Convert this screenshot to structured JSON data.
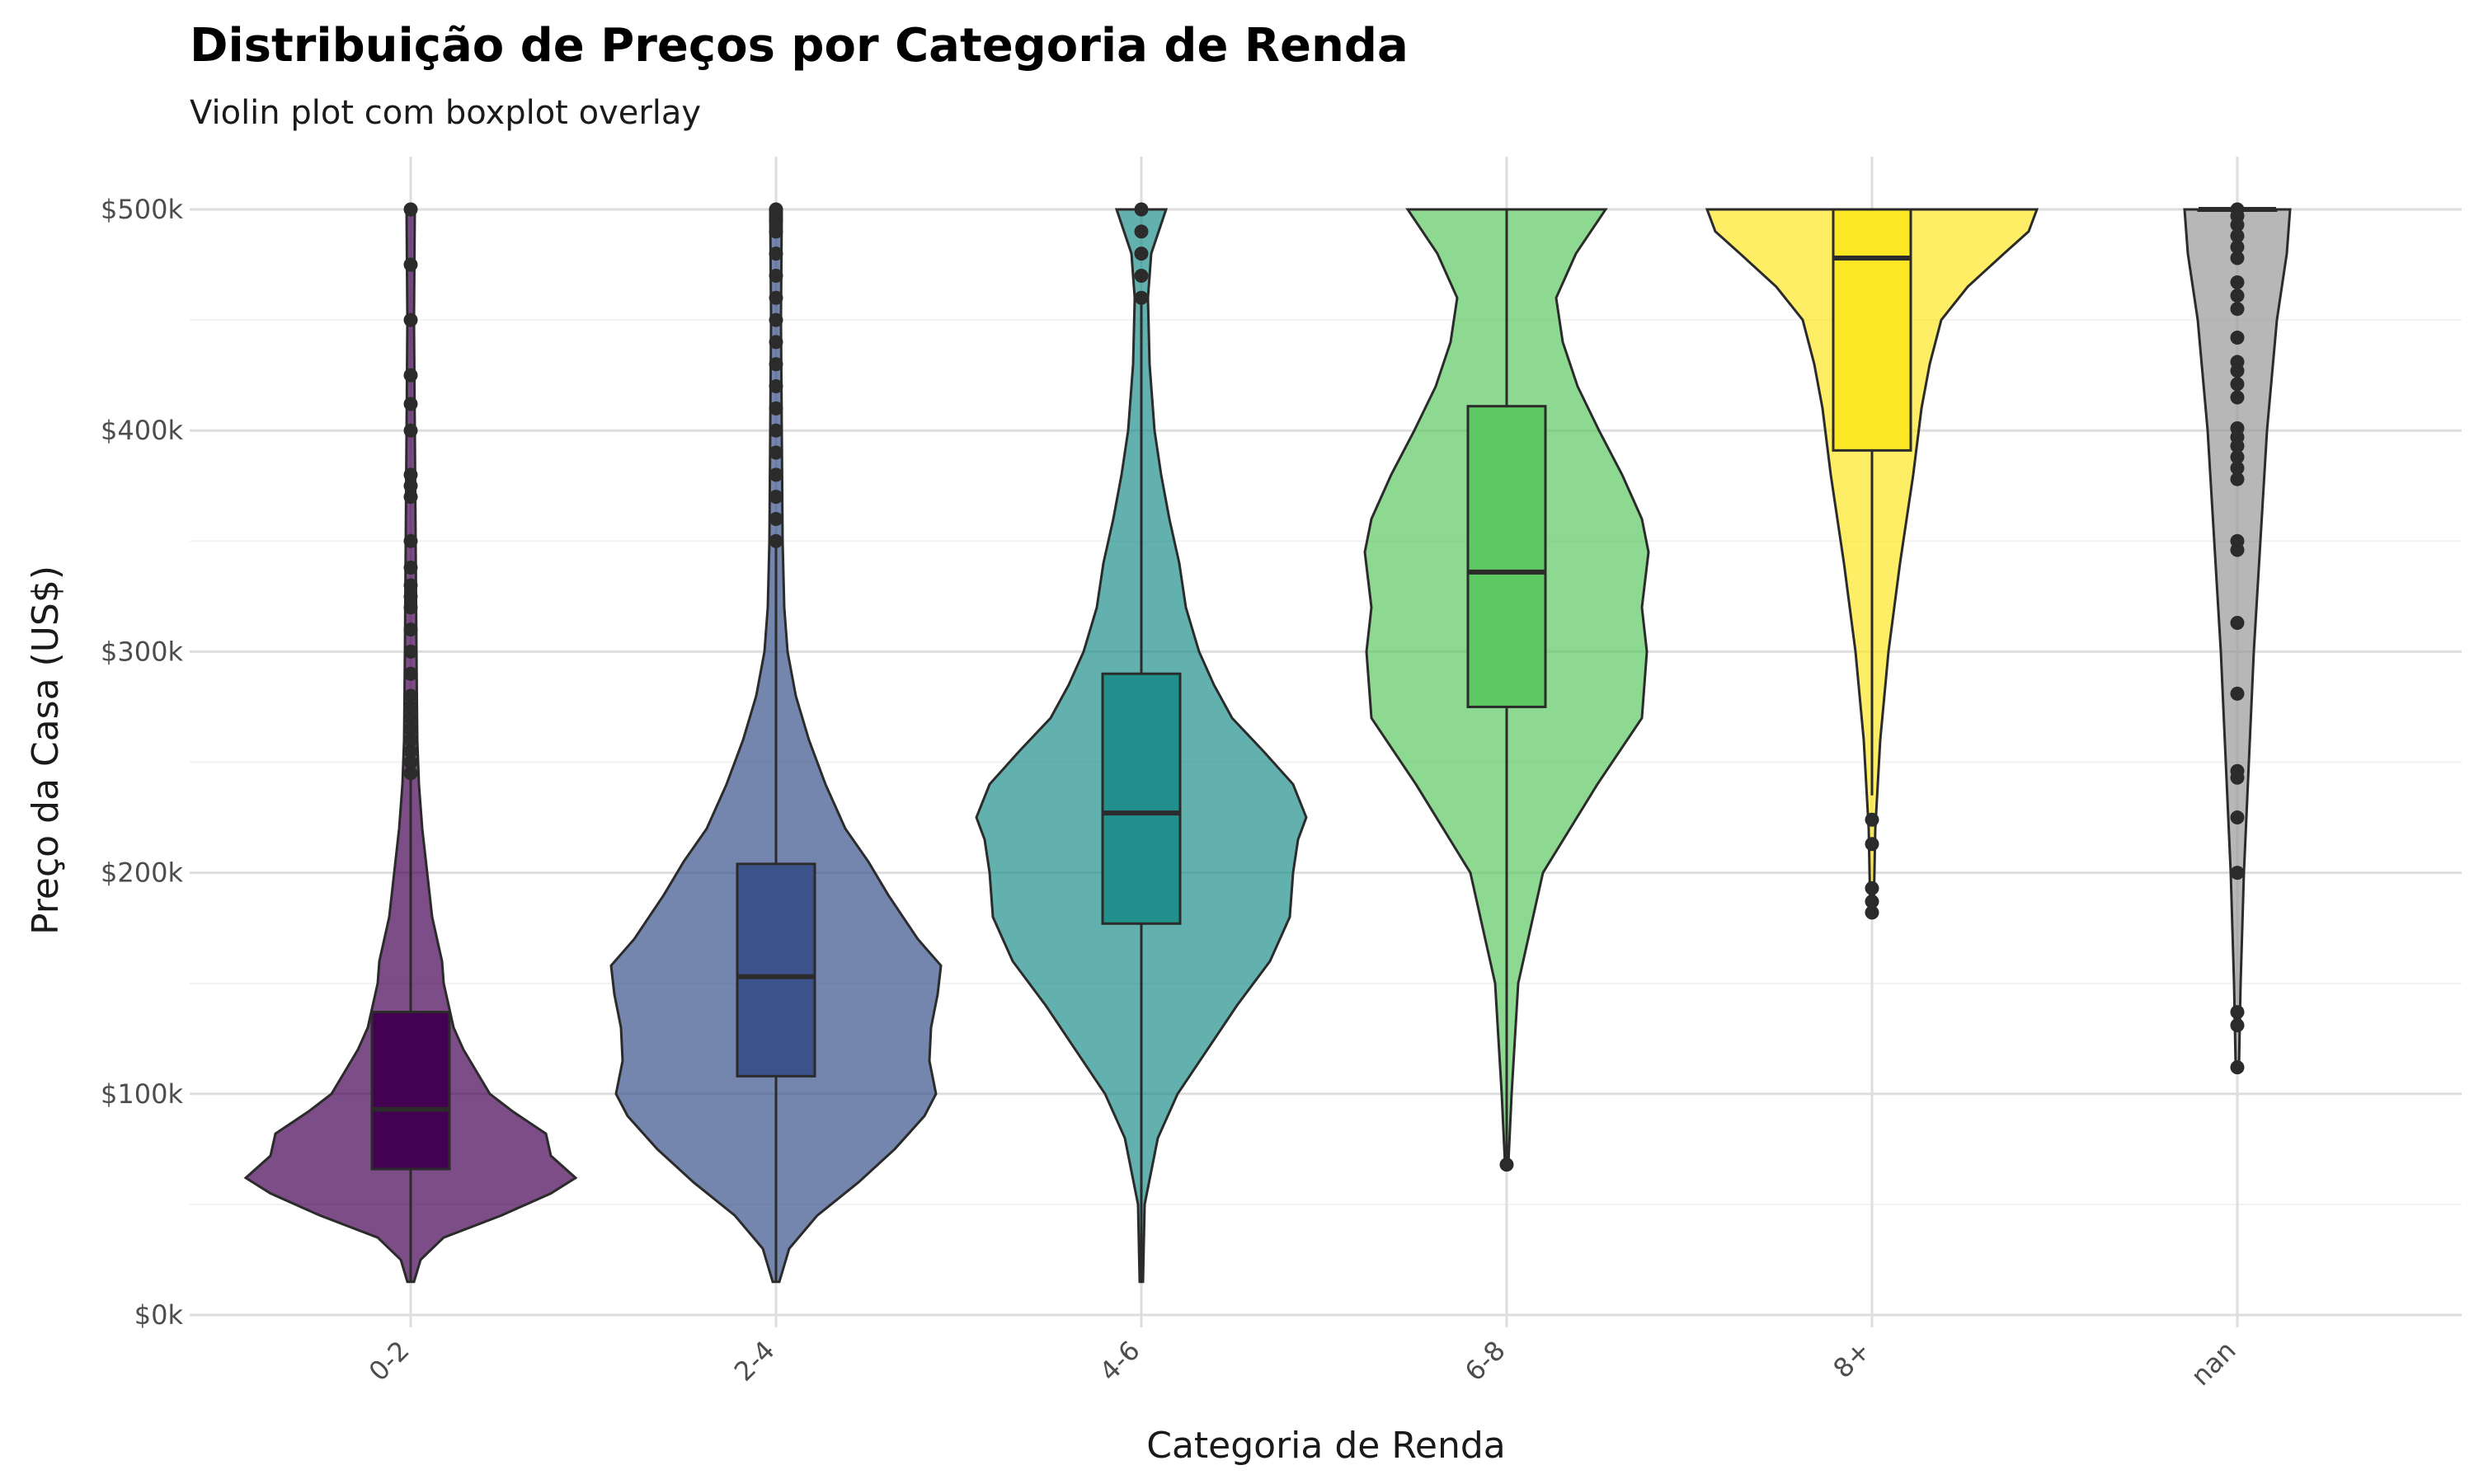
{
  "chart_data": {
    "type": "violin",
    "title": "Distribuição de Preços por Categoria de Renda",
    "subtitle": "Violin plot com boxplot overlay",
    "xlabel": "Categoria de Renda",
    "ylabel": "Preço da Casa (US$)",
    "ylim": [
      0,
      500000
    ],
    "yticks": [
      0,
      100000,
      200000,
      300000,
      400000,
      500000
    ],
    "ytick_labels": [
      "$0k",
      "$100k",
      "$200k",
      "$300k",
      "$400k",
      "$500k"
    ],
    "grid": true,
    "legend": "none",
    "categories": [
      "0-2",
      "2-4",
      "4-6",
      "6-8",
      "8+",
      "nan"
    ],
    "series": [
      {
        "category": "0-2",
        "color": "#440154",
        "box": {
          "q1": 66000,
          "median": 93000,
          "q3": 137000,
          "whisker_low": 15000,
          "whisker_high": 243000
        },
        "density": [
          [
            15000,
            0.02
          ],
          [
            25000,
            0.06
          ],
          [
            35000,
            0.2
          ],
          [
            45000,
            0.55
          ],
          [
            55000,
            0.85
          ],
          [
            62000,
            1.0
          ],
          [
            72000,
            0.85
          ],
          [
            82000,
            0.82
          ],
          [
            92000,
            0.62
          ],
          [
            100000,
            0.48
          ],
          [
            110000,
            0.4
          ],
          [
            120000,
            0.32
          ],
          [
            130000,
            0.26
          ],
          [
            140000,
            0.23
          ],
          [
            150000,
            0.2
          ],
          [
            160000,
            0.19
          ],
          [
            170000,
            0.16
          ],
          [
            180000,
            0.13
          ],
          [
            200000,
            0.1
          ],
          [
            220000,
            0.07
          ],
          [
            240000,
            0.05
          ],
          [
            260000,
            0.04
          ],
          [
            300000,
            0.035
          ],
          [
            350000,
            0.03
          ],
          [
            400000,
            0.025
          ],
          [
            450000,
            0.02
          ],
          [
            500000,
            0.025
          ]
        ],
        "outliers": [
          245000,
          250000,
          255000,
          260000,
          265000,
          270000,
          275000,
          280000,
          290000,
          300000,
          310000,
          320000,
          325000,
          330000,
          338000,
          350000,
          370000,
          375000,
          380000,
          400000,
          412000,
          425000,
          450000,
          475000,
          500000
        ]
      },
      {
        "category": "2-4",
        "color": "#3b528b",
        "box": {
          "q1": 108000,
          "median": 153000,
          "q3": 204000,
          "whisker_low": 15000,
          "whisker_high": 349000
        },
        "density": [
          [
            15000,
            0.02
          ],
          [
            30000,
            0.08
          ],
          [
            45000,
            0.25
          ],
          [
            60000,
            0.5
          ],
          [
            75000,
            0.72
          ],
          [
            90000,
            0.9
          ],
          [
            100000,
            0.97
          ],
          [
            115000,
            0.93
          ],
          [
            130000,
            0.94
          ],
          [
            145000,
            0.98
          ],
          [
            158000,
            1.0
          ],
          [
            170000,
            0.86
          ],
          [
            190000,
            0.68
          ],
          [
            205000,
            0.56
          ],
          [
            220000,
            0.42
          ],
          [
            240000,
            0.3
          ],
          [
            260000,
            0.2
          ],
          [
            280000,
            0.12
          ],
          [
            300000,
            0.07
          ],
          [
            320000,
            0.05
          ],
          [
            350000,
            0.04
          ],
          [
            400000,
            0.035
          ],
          [
            450000,
            0.03
          ],
          [
            500000,
            0.035
          ]
        ],
        "outliers": [
          350000,
          360000,
          370000,
          380000,
          390000,
          400000,
          410000,
          420000,
          430000,
          440000,
          450000,
          460000,
          470000,
          480000,
          490000,
          495000,
          500000
        ]
      },
      {
        "category": "4-6",
        "color": "#21908d",
        "box": {
          "q1": 177000,
          "median": 227000,
          "q3": 290000,
          "whisker_low": 15000,
          "whisker_high": 458000
        },
        "density": [
          [
            15000,
            0.01
          ],
          [
            50000,
            0.02
          ],
          [
            80000,
            0.1
          ],
          [
            100000,
            0.22
          ],
          [
            120000,
            0.4
          ],
          [
            140000,
            0.58
          ],
          [
            160000,
            0.78
          ],
          [
            180000,
            0.9
          ],
          [
            200000,
            0.92
          ],
          [
            215000,
            0.95
          ],
          [
            225000,
            1.0
          ],
          [
            240000,
            0.92
          ],
          [
            255000,
            0.74
          ],
          [
            270000,
            0.55
          ],
          [
            285000,
            0.44
          ],
          [
            300000,
            0.35
          ],
          [
            320000,
            0.27
          ],
          [
            340000,
            0.23
          ],
          [
            360000,
            0.17
          ],
          [
            380000,
            0.12
          ],
          [
            400000,
            0.08
          ],
          [
            430000,
            0.05
          ],
          [
            460000,
            0.04
          ],
          [
            480000,
            0.06
          ],
          [
            500000,
            0.15
          ]
        ],
        "outliers": [
          460000,
          470000,
          480000,
          490000,
          500000
        ]
      },
      {
        "category": "6-8",
        "color": "#5ec962",
        "box": {
          "q1": 275000,
          "median": 336000,
          "q3": 411000,
          "whisker_low": 68000,
          "whisker_high": 500000
        },
        "density": [
          [
            68000,
            0.01
          ],
          [
            100000,
            0.03
          ],
          [
            150000,
            0.07
          ],
          [
            200000,
            0.22
          ],
          [
            240000,
            0.55
          ],
          [
            270000,
            0.82
          ],
          [
            300000,
            0.85
          ],
          [
            320000,
            0.82
          ],
          [
            345000,
            0.86
          ],
          [
            360000,
            0.82
          ],
          [
            380000,
            0.7
          ],
          [
            400000,
            0.56
          ],
          [
            420000,
            0.43
          ],
          [
            440000,
            0.34
          ],
          [
            460000,
            0.3
          ],
          [
            480000,
            0.42
          ],
          [
            500000,
            0.6
          ]
        ],
        "outliers": [
          68000
        ]
      },
      {
        "category": "8+",
        "color": "#fde725",
        "box": {
          "q1": 391000,
          "median": 478000,
          "q3": 500000,
          "whisker_low": 235000,
          "whisker_high": 500000
        },
        "density": [
          [
            182000,
            0.01
          ],
          [
            220000,
            0.02
          ],
          [
            260000,
            0.05
          ],
          [
            300000,
            0.1
          ],
          [
            340000,
            0.17
          ],
          [
            380000,
            0.25
          ],
          [
            410000,
            0.3
          ],
          [
            430000,
            0.35
          ],
          [
            450000,
            0.42
          ],
          [
            465000,
            0.58
          ],
          [
            480000,
            0.8
          ],
          [
            490000,
            0.95
          ],
          [
            500000,
            1.0
          ]
        ],
        "outliers": [
          182000,
          187000,
          193000,
          213000,
          224000
        ]
      },
      {
        "category": "nan",
        "color": "#999999",
        "box": {
          "q1": 500000,
          "median": 500000,
          "q3": 500000,
          "whisker_low": 500000,
          "whisker_high": 500000
        },
        "density": [
          [
            112000,
            0.01
          ],
          [
            150000,
            0.02
          ],
          [
            200000,
            0.04
          ],
          [
            250000,
            0.07
          ],
          [
            300000,
            0.1
          ],
          [
            350000,
            0.14
          ],
          [
            400000,
            0.18
          ],
          [
            450000,
            0.24
          ],
          [
            480000,
            0.3
          ],
          [
            500000,
            0.32
          ]
        ],
        "outliers": [
          112000,
          131000,
          137000,
          200000,
          225000,
          243000,
          246000,
          281000,
          313000,
          346000,
          350000,
          378000,
          383000,
          388000,
          393000,
          397000,
          401000,
          415000,
          421000,
          427000,
          431000,
          442000,
          455000,
          461000,
          467000,
          478000,
          483000,
          488000,
          493000,
          497000,
          500000
        ]
      }
    ]
  }
}
